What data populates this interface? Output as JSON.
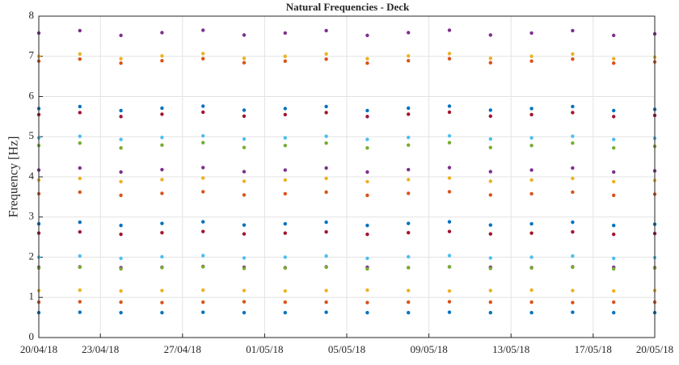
{
  "chart_data": {
    "type": "scatter",
    "title": "Natural Frequencies - Deck",
    "y_label": "Frequency [Hz]",
    "x": [
      "20/04/18",
      "22/04/18",
      "24/04/18",
      "26/04/18",
      "28/04/18",
      "30/04/18",
      "02/05/18",
      "04/05/18",
      "06/05/18",
      "08/05/18",
      "10/05/18",
      "12/05/18",
      "14/05/18",
      "16/05/18",
      "18/05/18",
      "20/05/18"
    ],
    "xlim": [
      "20/04/18",
      "20/05/18"
    ],
    "xticks": [
      "20/04/18",
      "23/04/18",
      "27/04/18",
      "01/05/18",
      "05/05/18",
      "09/05/18",
      "13/05/18",
      "17/05/18",
      "20/05/18"
    ],
    "ylim": [
      0,
      8
    ],
    "yticks": [
      0,
      1,
      2,
      3,
      4,
      5,
      6,
      7,
      8
    ],
    "grid": true,
    "series": [
      {
        "color": "#0072BD",
        "values": [
          0.62,
          0.63,
          0.62,
          0.62,
          0.63,
          0.62,
          0.62,
          0.63,
          0.62,
          0.62,
          0.63,
          0.62,
          0.62,
          0.63,
          0.62,
          0.62
        ]
      },
      {
        "color": "#D95319",
        "values": [
          0.88,
          0.89,
          0.88,
          0.87,
          0.88,
          0.89,
          0.88,
          0.88,
          0.87,
          0.88,
          0.89,
          0.88,
          0.88,
          0.87,
          0.88,
          0.88
        ]
      },
      {
        "color": "#EDB120",
        "values": [
          1.17,
          1.18,
          1.16,
          1.17,
          1.18,
          1.17,
          1.16,
          1.17,
          1.18,
          1.17,
          1.16,
          1.17,
          1.18,
          1.17,
          1.16,
          1.17
        ]
      },
      {
        "color": "#7E2F8E",
        "values": [
          1.75,
          1.76,
          1.74,
          1.75,
          1.77,
          1.75,
          1.74,
          1.76,
          1.75,
          1.74,
          1.76,
          1.75,
          1.74,
          1.76,
          1.75,
          1.74
        ]
      },
      {
        "color": "#77AC30",
        "values": [
          1.73,
          1.75,
          1.71,
          1.74,
          1.76,
          1.72,
          1.73,
          1.75,
          1.71,
          1.74,
          1.76,
          1.72,
          1.73,
          1.75,
          1.71,
          1.73
        ]
      },
      {
        "color": "#4DBEEE",
        "values": [
          2.0,
          2.03,
          1.97,
          2.01,
          2.04,
          1.98,
          2.0,
          2.03,
          1.97,
          2.01,
          2.04,
          1.98,
          2.0,
          2.03,
          1.97,
          1.99
        ]
      },
      {
        "color": "#A2142F",
        "values": [
          2.6,
          2.63,
          2.57,
          2.61,
          2.64,
          2.58,
          2.6,
          2.63,
          2.57,
          2.61,
          2.64,
          2.58,
          2.6,
          2.63,
          2.57,
          2.59
        ]
      },
      {
        "color": "#0072BD",
        "values": [
          2.83,
          2.87,
          2.79,
          2.84,
          2.88,
          2.8,
          2.83,
          2.87,
          2.79,
          2.84,
          2.88,
          2.8,
          2.83,
          2.87,
          2.79,
          2.82
        ]
      },
      {
        "color": "#D95319",
        "values": [
          3.58,
          3.62,
          3.54,
          3.59,
          3.63,
          3.55,
          3.58,
          3.62,
          3.54,
          3.59,
          3.63,
          3.55,
          3.58,
          3.62,
          3.54,
          3.57
        ]
      },
      {
        "color": "#EDB120",
        "values": [
          3.92,
          3.96,
          3.88,
          3.93,
          3.97,
          3.89,
          3.92,
          3.96,
          3.88,
          3.93,
          3.97,
          3.89,
          3.92,
          3.96,
          3.88,
          3.91
        ]
      },
      {
        "color": "#7E2F8E",
        "values": [
          4.17,
          4.22,
          4.12,
          4.18,
          4.23,
          4.13,
          4.17,
          4.22,
          4.12,
          4.18,
          4.23,
          4.13,
          4.17,
          4.22,
          4.12,
          4.15
        ]
      },
      {
        "color": "#77AC30",
        "values": [
          4.78,
          4.84,
          4.72,
          4.79,
          4.85,
          4.73,
          4.78,
          4.84,
          4.72,
          4.79,
          4.85,
          4.73,
          4.78,
          4.84,
          4.72,
          4.76
        ]
      },
      {
        "color": "#4DBEEE",
        "values": [
          4.97,
          5.01,
          4.93,
          4.98,
          5.02,
          4.94,
          4.97,
          5.01,
          4.93,
          4.98,
          5.02,
          4.94,
          4.97,
          5.01,
          4.93,
          4.96
        ]
      },
      {
        "color": "#A2142F",
        "values": [
          5.55,
          5.6,
          5.5,
          5.56,
          5.61,
          5.51,
          5.55,
          5.6,
          5.5,
          5.56,
          5.61,
          5.51,
          5.55,
          5.6,
          5.5,
          5.53
        ]
      },
      {
        "color": "#0072BD",
        "values": [
          5.7,
          5.75,
          5.65,
          5.71,
          5.76,
          5.66,
          5.7,
          5.75,
          5.65,
          5.71,
          5.76,
          5.66,
          5.7,
          5.75,
          5.65,
          5.68
        ]
      },
      {
        "color": "#D95319",
        "values": [
          6.88,
          6.93,
          6.83,
          6.89,
          6.94,
          6.84,
          6.88,
          6.93,
          6.83,
          6.89,
          6.94,
          6.84,
          6.88,
          6.93,
          6.83,
          6.86
        ]
      },
      {
        "color": "#EDB120",
        "values": [
          7.0,
          7.06,
          6.94,
          7.01,
          7.07,
          6.95,
          7.0,
          7.06,
          6.94,
          7.01,
          7.07,
          6.95,
          7.0,
          7.06,
          6.94,
          6.98
        ]
      },
      {
        "color": "#7E2F8E",
        "values": [
          7.58,
          7.64,
          7.52,
          7.59,
          7.65,
          7.53,
          7.58,
          7.64,
          7.52,
          7.59,
          7.65,
          7.53,
          7.58,
          7.64,
          7.52,
          7.56
        ]
      }
    ]
  }
}
